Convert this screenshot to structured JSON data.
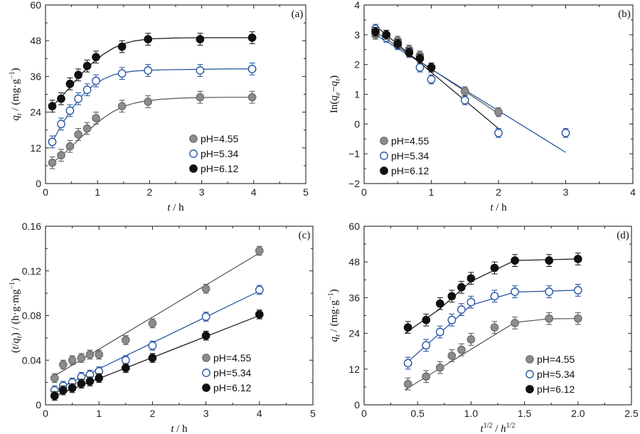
{
  "styles": {
    "pH=4.55": {
      "fill": "#8c8c8c",
      "stroke": "#6e6e6e",
      "err": "#555555",
      "line": "#555555"
    },
    "pH=5.34": {
      "fill": "#ffffff",
      "stroke": "#1f4e9e",
      "err": "#1f4e9e",
      "line": "#1f4e9e"
    },
    "pH=6.12": {
      "fill": "#111111",
      "stroke": "#111111",
      "err": "#111111",
      "line": "#111111"
    }
  },
  "chart_data": [
    {
      "id": "a",
      "panel_tag": "(a)",
      "type": "scatter",
      "xlabel_html": "<tspan font-style='italic'>t</tspan> / h",
      "ylabel_html": "<tspan font-style='italic'>q</tspan><tspan font-style='italic' font-size='10' dy='4'>t</tspan><tspan dy='-4'> / (mg·g</tspan><tspan font-size='10' dy='-6'>−1</tspan><tspan dy='6'>)</tspan>",
      "xlim": [
        0,
        5
      ],
      "ylim": [
        0,
        60
      ],
      "xticks": [
        0,
        1,
        2,
        3,
        4,
        5
      ],
      "xtick_labels": [
        "0",
        "1",
        "2",
        "3",
        "4",
        "5"
      ],
      "yticks": [
        0,
        12,
        24,
        36,
        48,
        60
      ],
      "ytick_labels": [
        "0",
        "12",
        "24",
        "36",
        "48",
        "60"
      ],
      "legend": [
        "pH=4.55",
        "pH=5.34",
        "pH=6.12"
      ],
      "series": [
        {
          "name": "pH=4.55",
          "x": [
            0.13,
            0.3,
            0.47,
            0.63,
            0.8,
            0.97,
            1.47,
            1.97,
            2.97,
            3.97
          ],
          "y": [
            7.0,
            9.5,
            12.5,
            16.5,
            18.5,
            22.0,
            26.0,
            27.5,
            29.0,
            29.0
          ],
          "err": [
            2,
            2,
            2,
            2,
            2,
            2,
            2,
            2,
            2,
            2
          ],
          "fit": {
            "x": [
              0.13,
              0.3,
              0.5,
              0.7,
              0.9,
              1.1,
              1.3,
              1.5,
              1.7,
              1.9,
              2.2,
              2.6,
              3.0,
              3.5,
              4.0
            ],
            "y": [
              7.0,
              9.2,
              12.4,
              15.8,
              19.0,
              21.9,
              24.2,
              25.9,
              27.0,
              27.7,
              28.3,
              28.7,
              28.9,
              29.0,
              29.0
            ]
          }
        },
        {
          "name": "pH=5.34",
          "x": [
            0.13,
            0.3,
            0.47,
            0.63,
            0.8,
            0.97,
            1.47,
            1.97,
            2.97,
            3.97
          ],
          "y": [
            14.0,
            20.0,
            24.5,
            28.5,
            31.5,
            34.5,
            37.0,
            38.0,
            38.0,
            38.5
          ],
          "err": [
            2,
            2,
            2,
            2,
            2,
            2,
            2,
            2,
            2,
            2
          ],
          "fit": {
            "x": [
              0.13,
              0.3,
              0.5,
              0.7,
              0.9,
              1.1,
              1.3,
              1.5,
              1.7,
              2.0,
              2.5,
              3.0,
              3.5,
              4.0
            ],
            "y": [
              14.0,
              19.5,
              25.0,
              29.5,
              32.8,
              35.0,
              36.5,
              37.3,
              37.8,
              38.1,
              38.3,
              38.4,
              38.5,
              38.5
            ]
          }
        },
        {
          "name": "pH=6.12",
          "x": [
            0.13,
            0.3,
            0.47,
            0.63,
            0.8,
            0.97,
            1.47,
            1.97,
            2.97,
            3.97
          ],
          "y": [
            26.0,
            28.5,
            33.5,
            36.5,
            39.5,
            42.5,
            46.0,
            48.5,
            48.5,
            49.0
          ],
          "err": [
            2,
            2,
            2,
            2,
            2,
            2,
            2,
            2,
            2,
            2
          ],
          "fit": {
            "x": [
              0.13,
              0.3,
              0.5,
              0.7,
              0.9,
              1.1,
              1.3,
              1.5,
              1.7,
              2.0,
              2.5,
              3.0,
              3.5,
              4.0
            ],
            "y": [
              26.0,
              29.0,
              33.0,
              37.0,
              40.5,
              43.3,
              45.5,
              47.0,
              47.9,
              48.6,
              48.9,
              49.0,
              49.0,
              49.0
            ]
          }
        }
      ]
    },
    {
      "id": "b",
      "panel_tag": "(b)",
      "type": "scatter",
      "xlabel_html": "<tspan font-style='italic'>t</tspan> / h",
      "ylabel_html": "In(<tspan font-style='italic'>q</tspan><tspan font-style='italic' font-size='10' dy='4'>e</tspan><tspan dy='-4'>−</tspan><tspan font-style='italic'>q</tspan><tspan font-style='italic' font-size='10' dy='4'>t</tspan><tspan dy='-4'>)</tspan>",
      "xlim": [
        0,
        4
      ],
      "ylim": [
        -2,
        4
      ],
      "xticks": [
        0,
        1,
        2,
        3,
        4
      ],
      "xtick_labels": [
        "0",
        "1",
        "2",
        "3",
        "4"
      ],
      "yticks": [
        -2,
        -1,
        0,
        1,
        2,
        3,
        4
      ],
      "ytick_labels": [
        "−2",
        "−1",
        "0",
        "1",
        "2",
        "3",
        "4"
      ],
      "legend": [
        "pH=4.55",
        "pH=5.34",
        "pH=6.12"
      ],
      "series": [
        {
          "name": "pH=4.55",
          "x": [
            0.17,
            0.33,
            0.5,
            0.67,
            0.83,
            1.0,
            1.5,
            2.0
          ],
          "y": [
            3.0,
            3.0,
            2.8,
            2.5,
            2.3,
            1.9,
            1.1,
            0.4
          ],
          "err": [
            0.15,
            0.15,
            0.15,
            0.15,
            0.15,
            0.15,
            0.15,
            0.15
          ],
          "fit": {
            "x": [
              0.17,
              2.0
            ],
            "y": [
              3.1,
              0.35
            ]
          }
        },
        {
          "name": "pH=5.34",
          "x": [
            0.17,
            0.33,
            0.5,
            0.67,
            0.83,
            1.0,
            1.5,
            2.0,
            3.0
          ],
          "y": [
            3.2,
            2.9,
            2.65,
            2.4,
            1.9,
            1.5,
            0.8,
            -0.3,
            -0.3
          ],
          "err": [
            0.15,
            0.15,
            0.15,
            0.15,
            0.15,
            0.15,
            0.15,
            0.15,
            0.15
          ],
          "fit": {
            "x": [
              0.17,
              3.0
            ],
            "y": [
              3.0,
              -0.95
            ]
          }
        },
        {
          "name": "pH=6.12",
          "x": [
            0.17,
            0.33,
            0.5,
            0.67,
            0.83,
            1.0
          ],
          "y": [
            3.1,
            3.0,
            2.7,
            2.4,
            2.2,
            1.9
          ],
          "err": [
            0.15,
            0.15,
            0.15,
            0.15,
            0.15,
            0.15
          ],
          "fit": {
            "x": [
              0.17,
              2.0
            ],
            "y": [
              3.3,
              -0.15
            ]
          }
        }
      ]
    },
    {
      "id": "c",
      "panel_tag": "(c)",
      "type": "scatter",
      "xlabel_html": "<tspan font-style='italic'>t</tspan> / h",
      "ylabel_html": "(<tspan font-style='italic'>t</tspan>/<tspan font-style='italic'>q</tspan><tspan font-style='italic' font-size='10' dy='4'>t</tspan><tspan dy='-4'>) / (h·g·mg</tspan><tspan font-size='10' dy='-6'>−1</tspan><tspan dy='6'>)</tspan>",
      "xlim": [
        0,
        5
      ],
      "ylim": [
        0,
        0.16
      ],
      "xticks": [
        0,
        1,
        2,
        3,
        4,
        5
      ],
      "xtick_labels": [
        "0",
        "1",
        "2",
        "3",
        "4",
        "5"
      ],
      "yticks": [
        0,
        0.04,
        0.08,
        0.12,
        0.16
      ],
      "ytick_labels": [
        "0",
        "0.04",
        "0.08",
        "0.12",
        "0.16"
      ],
      "legend": [
        "pH=4.55",
        "pH=5.34",
        "pH=6.12"
      ],
      "series": [
        {
          "name": "pH=4.55",
          "x": [
            0.17,
            0.33,
            0.5,
            0.67,
            0.83,
            1.0,
            1.5,
            2.0,
            3.0,
            4.0
          ],
          "y": [
            0.024,
            0.036,
            0.04,
            0.042,
            0.045,
            0.045,
            0.058,
            0.073,
            0.104,
            0.138
          ],
          "err": [
            0.004,
            0.004,
            0.004,
            0.004,
            0.004,
            0.004,
            0.004,
            0.004,
            0.004,
            0.004
          ],
          "fit": {
            "x": [
              0.17,
              4.0
            ],
            "y": [
              0.026,
              0.136
            ]
          }
        },
        {
          "name": "pH=5.34",
          "x": [
            0.17,
            0.33,
            0.5,
            0.67,
            0.83,
            1.0,
            1.5,
            2.0,
            3.0,
            4.0
          ],
          "y": [
            0.013,
            0.017,
            0.02,
            0.025,
            0.027,
            0.03,
            0.04,
            0.053,
            0.079,
            0.103
          ],
          "err": [
            0.004,
            0.004,
            0.004,
            0.004,
            0.004,
            0.004,
            0.004,
            0.004,
            0.004,
            0.004
          ],
          "fit": {
            "x": [
              0.17,
              4.0
            ],
            "y": [
              0.013,
              0.102
            ]
          }
        },
        {
          "name": "pH=6.12",
          "x": [
            0.17,
            0.33,
            0.5,
            0.67,
            0.83,
            1.0,
            1.5,
            2.0,
            3.0,
            4.0
          ],
          "y": [
            0.008,
            0.013,
            0.015,
            0.019,
            0.021,
            0.024,
            0.033,
            0.042,
            0.062,
            0.081
          ],
          "err": [
            0.004,
            0.004,
            0.004,
            0.004,
            0.004,
            0.004,
            0.004,
            0.004,
            0.004,
            0.004
          ],
          "fit": {
            "x": [
              0.17,
              4.0
            ],
            "y": [
              0.008,
              0.08
            ]
          }
        }
      ]
    },
    {
      "id": "d",
      "panel_tag": "(d)",
      "type": "scatter",
      "xlabel_html": "<tspan font-style='italic'>t</tspan><tspan font-size='10' dy='-6'>1/2</tspan><tspan dy='6'> / </tspan><tspan font-style='italic'>h</tspan><tspan font-size='10' dy='-6'>1/2</tspan>",
      "ylabel_html": "<tspan font-style='italic'>q</tspan><tspan font-style='italic' font-size='10' dy='4'>t</tspan><tspan dy='-4'> / (mg·g</tspan><tspan font-size='10' dy='-6'>−1</tspan><tspan dy='6'>)</tspan>",
      "xlim": [
        0,
        2.5
      ],
      "ylim": [
        0,
        60
      ],
      "xticks": [
        0,
        0.5,
        1.0,
        1.5,
        2.0,
        2.5
      ],
      "xtick_labels": [
        "0",
        "0.5",
        "1.0",
        "1.5",
        "2.0",
        "2.5"
      ],
      "yticks": [
        0,
        12,
        24,
        36,
        48,
        60
      ],
      "ytick_labels": [
        "0",
        "12",
        "24",
        "36",
        "48",
        "60"
      ],
      "legend": [
        "pH=4.55",
        "pH=5.34",
        "pH=6.12"
      ],
      "series": [
        {
          "name": "pH=4.55",
          "x": [
            0.41,
            0.58,
            0.71,
            0.82,
            0.91,
            1.0,
            1.22,
            1.41,
            1.73,
            2.0
          ],
          "y": [
            7.0,
            9.5,
            12.5,
            16.5,
            18.5,
            22.0,
            26.0,
            27.5,
            29.0,
            29.0
          ],
          "err": [
            2,
            2,
            2,
            2,
            2,
            2,
            2,
            2,
            2,
            2
          ],
          "fit": {
            "x": [
              0.38,
              1.41,
              1.73,
              2.0
            ],
            "y": [
              5.0,
              27.7,
              28.9,
              29.0
            ]
          }
        },
        {
          "name": "pH=5.34",
          "x": [
            0.41,
            0.58,
            0.71,
            0.82,
            0.91,
            1.0,
            1.22,
            1.41,
            1.73,
            2.0
          ],
          "y": [
            14.0,
            20.0,
            24.5,
            28.5,
            32.0,
            34.5,
            36.5,
            38.0,
            38.0,
            38.5
          ],
          "err": [
            2,
            2,
            2,
            2,
            2,
            2,
            2,
            2,
            2,
            2
          ],
          "fit": {
            "x": [
              0.38,
              1.0,
              1.41,
              2.0
            ],
            "y": [
              13.5,
              33.5,
              37.9,
              38.5
            ]
          }
        },
        {
          "name": "pH=6.12",
          "x": [
            0.41,
            0.58,
            0.71,
            0.82,
            0.91,
            1.0,
            1.22,
            1.41,
            1.73,
            2.0
          ],
          "y": [
            26.0,
            28.5,
            34.0,
            36.5,
            39.5,
            42.5,
            46.0,
            48.5,
            48.5,
            49.0
          ],
          "err": [
            2,
            2,
            2,
            2,
            2,
            2,
            2,
            2,
            2,
            2
          ],
          "fit": {
            "x": [
              0.38,
              0.7,
              1.0,
              1.41,
              2.0
            ],
            "y": [
              24.0,
              32.0,
              41.5,
              48.5,
              49.0
            ]
          }
        }
      ]
    }
  ]
}
